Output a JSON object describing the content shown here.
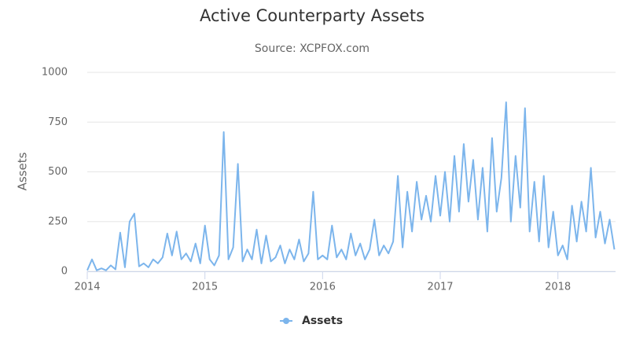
{
  "chart_data": {
    "type": "line",
    "title": "Active Counterparty Assets",
    "subtitle": "Source: XCPFOX.com",
    "y_label": "Assets",
    "x": [
      2014.0,
      2014.04,
      2014.08,
      2014.12,
      2014.16,
      2014.2,
      2014.24,
      2014.28,
      2014.32,
      2014.36,
      2014.4,
      2014.44,
      2014.48,
      2014.52,
      2014.56,
      2014.6,
      2014.64,
      2014.68,
      2014.72,
      2014.76,
      2014.8,
      2014.84,
      2014.88,
      2014.92,
      2014.96,
      2015.0,
      2015.04,
      2015.08,
      2015.12,
      2015.16,
      2015.2,
      2015.24,
      2015.28,
      2015.32,
      2015.36,
      2015.4,
      2015.44,
      2015.48,
      2015.52,
      2015.56,
      2015.6,
      2015.64,
      2015.68,
      2015.72,
      2015.76,
      2015.8,
      2015.84,
      2015.88,
      2015.92,
      2015.96,
      2016.0,
      2016.04,
      2016.08,
      2016.12,
      2016.16,
      2016.2,
      2016.24,
      2016.28,
      2016.32,
      2016.36,
      2016.4,
      2016.44,
      2016.48,
      2016.52,
      2016.56,
      2016.6,
      2016.64,
      2016.68,
      2016.72,
      2016.76,
      2016.8,
      2016.84,
      2016.88,
      2016.92,
      2016.96,
      2017.0,
      2017.04,
      2017.08,
      2017.12,
      2017.16,
      2017.2,
      2017.24,
      2017.28,
      2017.32,
      2017.36,
      2017.4,
      2017.44,
      2017.48,
      2017.52,
      2017.56,
      2017.6,
      2017.64,
      2017.68,
      2017.72,
      2017.76,
      2017.8,
      2017.84,
      2017.88,
      2017.92,
      2017.96,
      2018.0,
      2018.04,
      2018.08,
      2018.12,
      2018.16,
      2018.2,
      2018.24,
      2018.28,
      2018.32,
      2018.36,
      2018.4,
      2018.44,
      2018.48
    ],
    "series": [
      {
        "name": "Assets",
        "color": "#7cb5ec",
        "values": [
          5,
          60,
          5,
          15,
          5,
          30,
          10,
          195,
          20,
          250,
          290,
          25,
          40,
          20,
          60,
          40,
          70,
          190,
          80,
          200,
          60,
          90,
          50,
          140,
          40,
          230,
          60,
          30,
          80,
          700,
          60,
          120,
          540,
          50,
          110,
          60,
          210,
          40,
          180,
          50,
          70,
          130,
          40,
          110,
          60,
          160,
          50,
          90,
          400,
          60,
          80,
          60,
          230,
          70,
          110,
          60,
          190,
          80,
          140,
          60,
          110,
          260,
          80,
          130,
          90,
          150,
          480,
          120,
          400,
          200,
          450,
          260,
          380,
          250,
          480,
          280,
          500,
          250,
          580,
          300,
          640,
          350,
          560,
          260,
          520,
          200,
          670,
          300,
          470,
          850,
          250,
          580,
          320,
          820,
          200,
          450,
          150,
          480,
          120,
          300,
          80,
          130,
          60,
          330,
          150,
          350,
          200,
          520,
          170,
          300,
          140,
          260,
          110
        ]
      }
    ],
    "xlim": [
      2014,
      2018.49
    ],
    "xticks": [
      2014,
      2015,
      2016,
      2017,
      2018
    ],
    "ylim": [
      0,
      1000
    ],
    "yticks": [
      0,
      250,
      500,
      750,
      1000
    ],
    "grid": true
  }
}
